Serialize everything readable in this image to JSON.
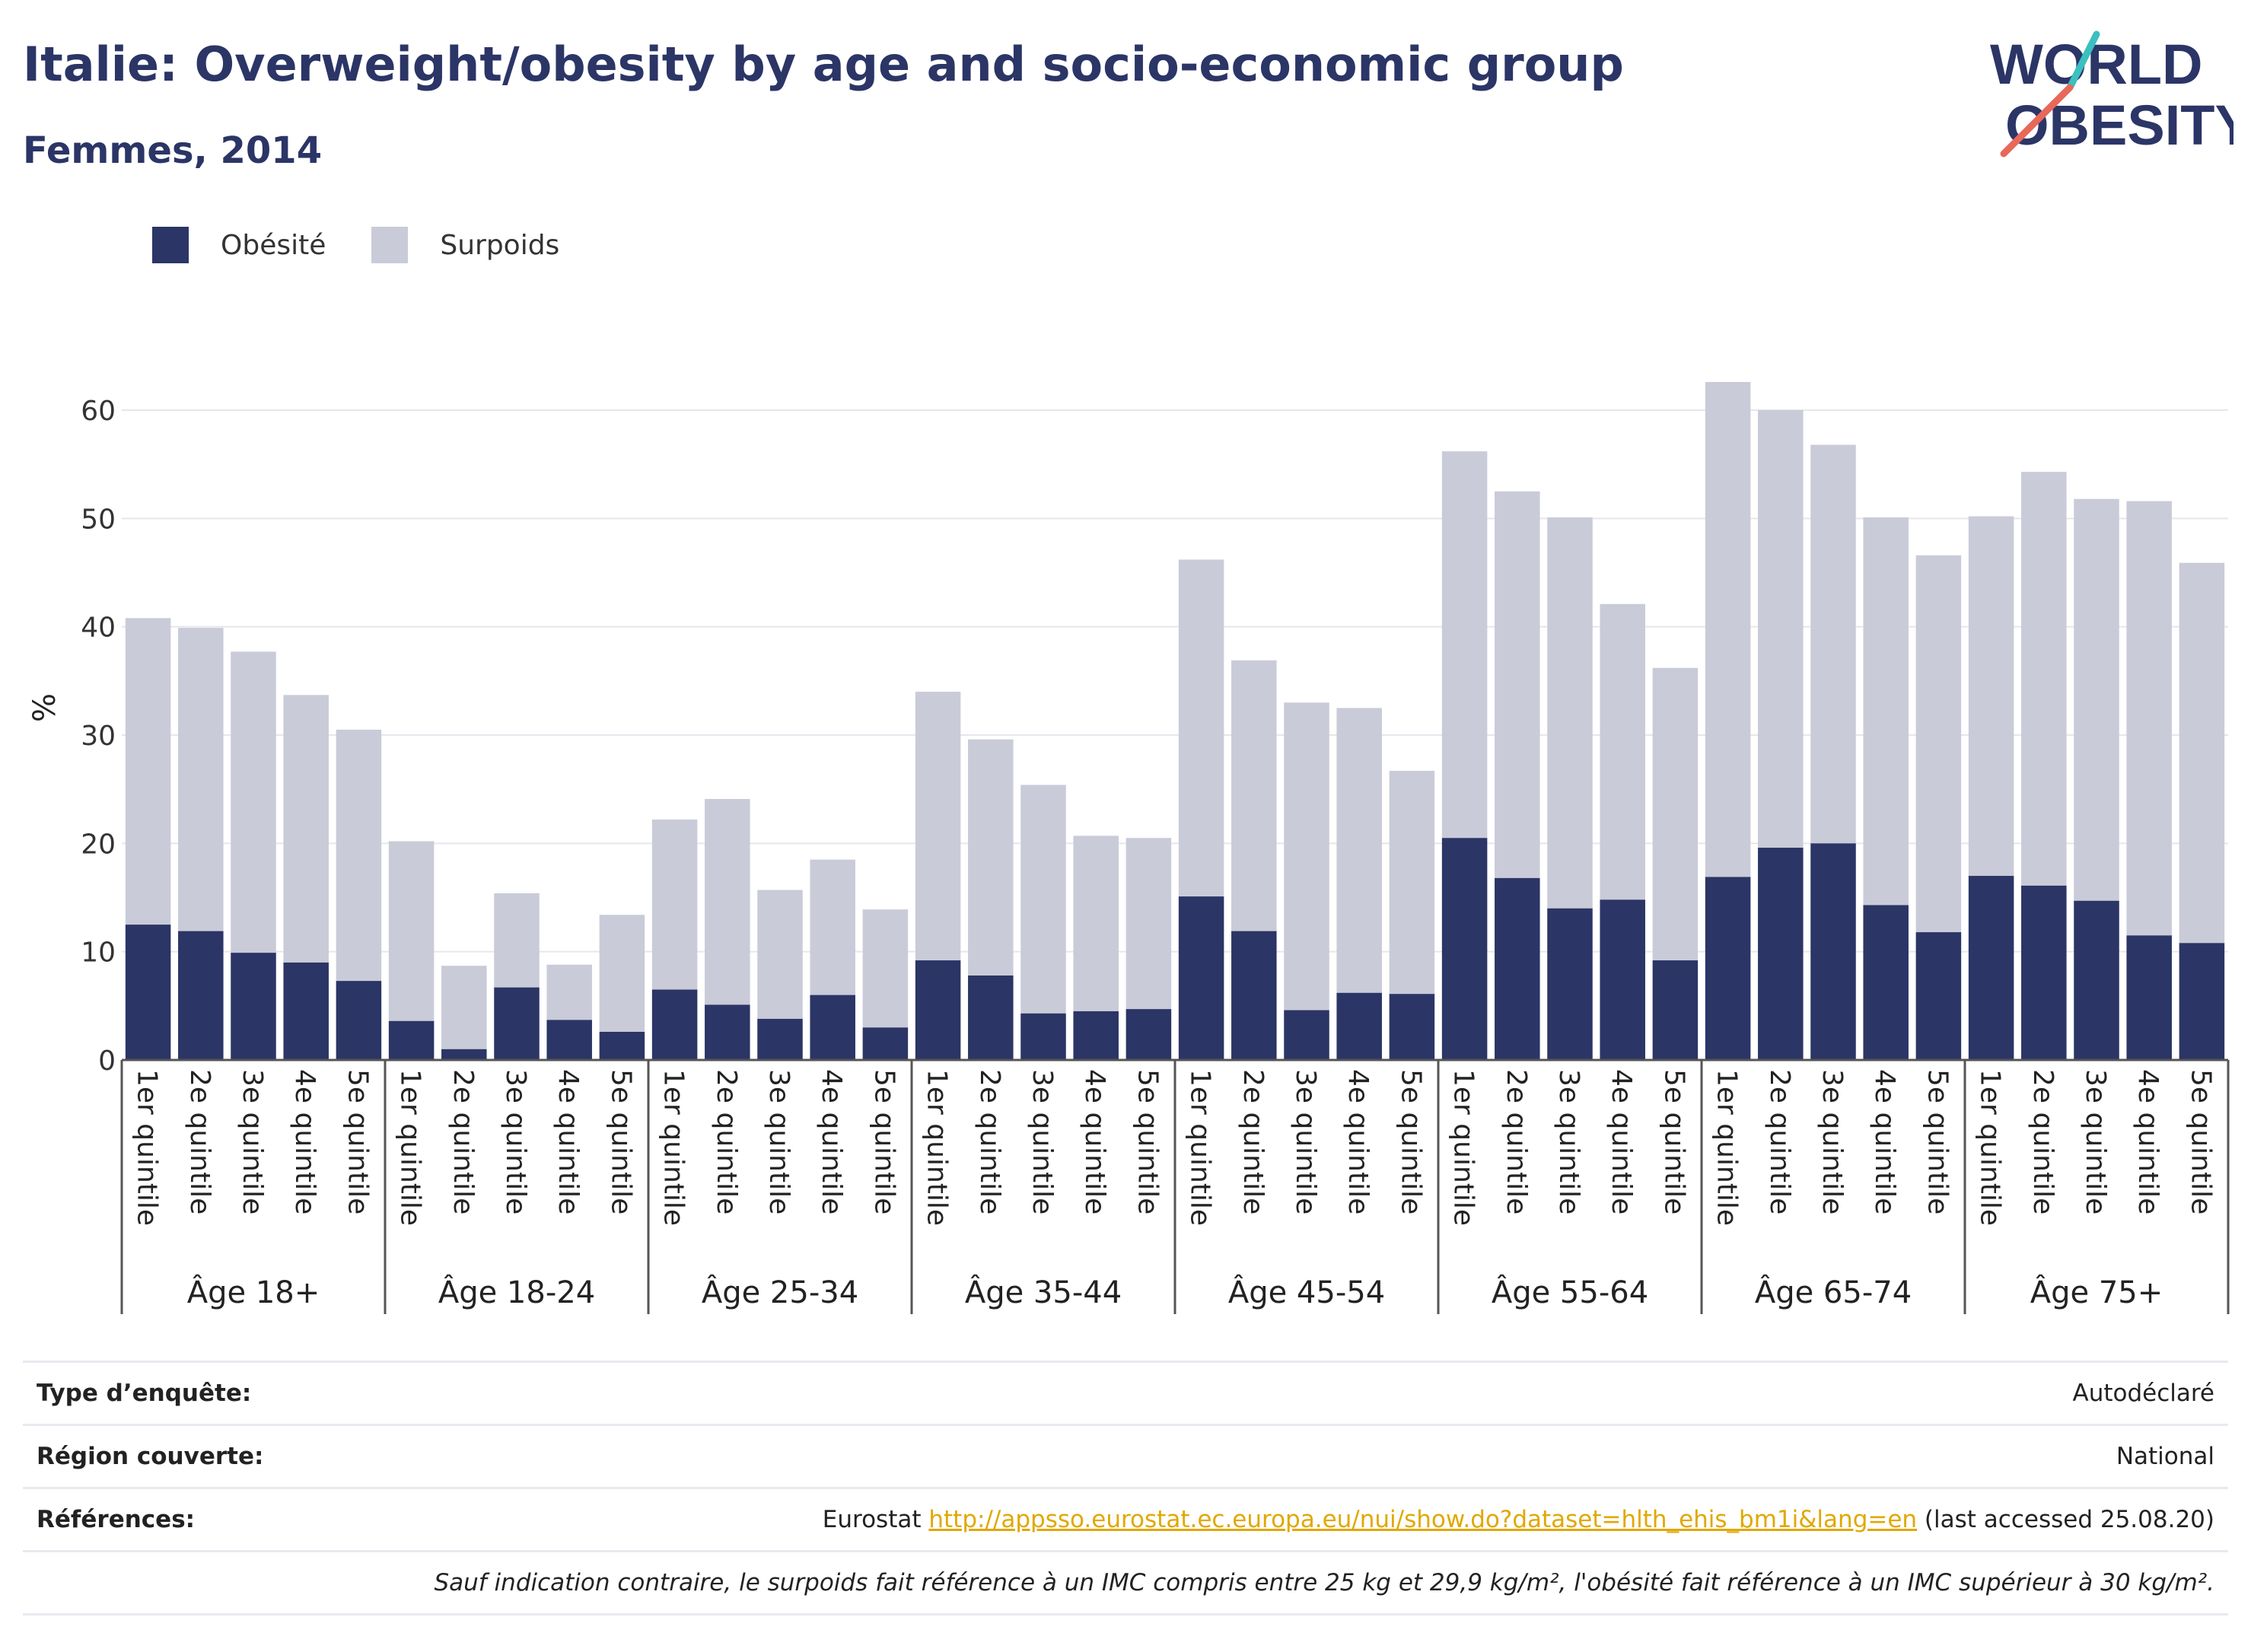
{
  "header": {
    "title": "Italie: Overweight/obesity by age and socio-economic group",
    "subtitle": "Femmes, 2014"
  },
  "logo": {
    "line1": "WORLD",
    "line2": "OBESITY",
    "accent_teal": "#3bbfbf",
    "accent_red": "#e8685a",
    "color": "#2b3566"
  },
  "legend": {
    "items": [
      {
        "label": "Obésité",
        "color": "#2b3566"
      },
      {
        "label": "Surpoids",
        "color": "#c9cbd8"
      }
    ]
  },
  "chart_data": {
    "type": "bar",
    "stacked": true,
    "ylabel": "%",
    "ylim": [
      0,
      65
    ],
    "yticks": [
      0,
      10,
      20,
      30,
      40,
      50,
      60
    ],
    "grid": true,
    "legend_position": "top-left",
    "subcategories": [
      "1er quintile",
      "2e quintile",
      "3e quintile",
      "4e quintile",
      "5e quintile"
    ],
    "groups": [
      "Âge 18+",
      "Âge 18-24",
      "Âge 25-34",
      "Âge 35-44",
      "Âge 45-54",
      "Âge 55-64",
      "Âge 65-74",
      "Âge 75+"
    ],
    "series": [
      {
        "name": "Obésité",
        "color": "#2b3566",
        "values": [
          [
            12.5,
            11.9,
            9.9,
            9.0,
            7.3
          ],
          [
            3.6,
            1.0,
            6.7,
            3.7,
            2.6
          ],
          [
            6.5,
            5.1,
            3.8,
            6.0,
            3.0
          ],
          [
            9.2,
            7.8,
            4.3,
            4.5,
            4.7
          ],
          [
            15.1,
            11.9,
            4.6,
            6.2,
            6.1
          ],
          [
            20.5,
            16.8,
            14.0,
            14.8,
            9.2
          ],
          [
            16.9,
            19.6,
            20.0,
            14.3,
            11.8
          ],
          [
            17.0,
            16.1,
            14.7,
            11.5,
            10.8
          ]
        ]
      },
      {
        "name": "Surpoids",
        "color": "#c9cbd8",
        "values": [
          [
            28.3,
            28.0,
            27.8,
            24.7,
            23.2
          ],
          [
            16.6,
            7.7,
            8.7,
            5.1,
            10.8
          ],
          [
            15.7,
            19.0,
            11.9,
            12.5,
            10.9
          ],
          [
            24.8,
            21.8,
            21.1,
            16.2,
            15.8
          ],
          [
            31.1,
            25.0,
            28.4,
            26.3,
            20.6
          ],
          [
            35.7,
            35.7,
            36.1,
            27.3,
            27.0
          ],
          [
            45.7,
            40.4,
            36.8,
            35.8,
            34.8
          ],
          [
            33.2,
            38.2,
            37.1,
            40.1,
            35.1
          ]
        ]
      }
    ]
  },
  "info": {
    "survey_type_label": "Type d’enquête:",
    "survey_type_value": "Autodéclaré",
    "region_label": "Région couverte:",
    "region_value": "National",
    "refs_label": "Références:",
    "refs_prefix": "Eurostat",
    "refs_link": "http://appsso.eurostat.ec.europa.eu/nui/show.do?dataset=hlth_ehis_bm1i&lang=en",
    "refs_suffix": "(last accessed 25.08.20)",
    "note": "Sauf indication contraire, le surpoids fait référence à un IMC compris entre 25 kg et 29,9 kg/m², l'obésité fait référence à un IMC supérieur à 30 kg/m²."
  }
}
